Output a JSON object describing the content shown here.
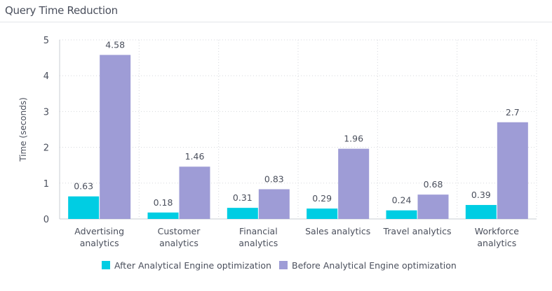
{
  "header": {
    "title": "Query Time Reduction"
  },
  "chart_data": {
    "type": "bar",
    "title": "Query Time Reduction",
    "xlabel": "",
    "ylabel": "Time (seconds)",
    "ylim": [
      0,
      5
    ],
    "yticks": [
      0,
      1,
      2,
      3,
      4,
      5
    ],
    "grid": true,
    "legend_position": "bottom",
    "categories": [
      [
        "Advertising",
        "analytics"
      ],
      [
        "Customer",
        "analytics"
      ],
      [
        "Financial",
        "analytics"
      ],
      [
        "Sales analytics"
      ],
      [
        "Travel analytics"
      ],
      [
        "Workforce",
        "analytics"
      ]
    ],
    "series": [
      {
        "name": "After Analytical Engine optimization",
        "color": "#00cde3",
        "values": [
          0.63,
          0.18,
          0.31,
          0.29,
          0.24,
          0.39
        ]
      },
      {
        "name": "Before Analytical Engine optimization",
        "color": "#9e9cd6",
        "values": [
          4.58,
          1.46,
          0.83,
          1.96,
          0.68,
          2.7
        ]
      }
    ]
  }
}
